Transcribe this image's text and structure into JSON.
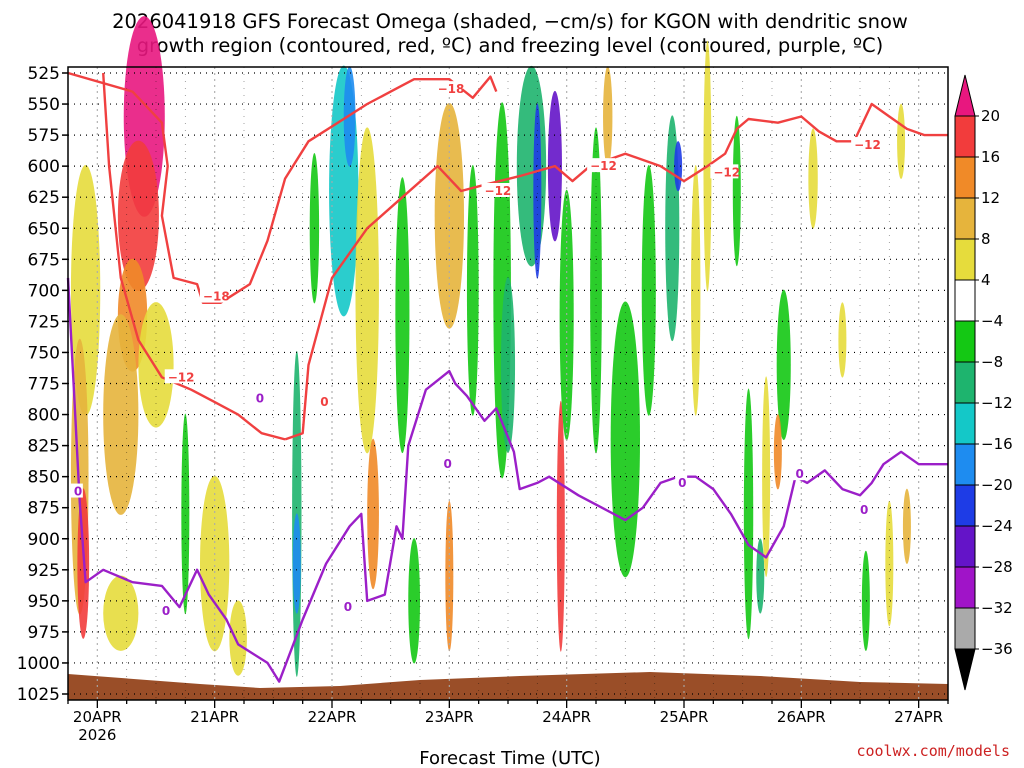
{
  "chart_data": {
    "type": "heatmap",
    "title_line1": "2026041918 GFS Forecast Omega (shaded, −cm/s) for KGON with dendritic snow",
    "title_line2": "growth region (contoured, red, ºC) and freezing level (contoured, purple, ºC)",
    "xlabel": "Forecast Time (UTC)",
    "credit": "coolwx.com/models",
    "y_ticks": [
      525,
      550,
      575,
      600,
      625,
      650,
      675,
      700,
      725,
      750,
      775,
      800,
      825,
      850,
      875,
      900,
      925,
      950,
      975,
      1000,
      1025
    ],
    "x_ticks": [
      {
        "label": "20APR",
        "sub": "2026",
        "day": 0
      },
      {
        "label": "21APR",
        "sub": "",
        "day": 1
      },
      {
        "label": "22APR",
        "sub": "",
        "day": 2
      },
      {
        "label": "23APR",
        "sub": "",
        "day": 3
      },
      {
        "label": "24APR",
        "sub": "",
        "day": 4
      },
      {
        "label": "25APR",
        "sub": "",
        "day": 5
      },
      {
        "label": "26APR",
        "sub": "",
        "day": 6
      },
      {
        "label": "27APR",
        "sub": "",
        "day": 7
      }
    ],
    "x_range_days": [
      -0.25,
      7.25
    ],
    "colorbar": {
      "labels": [
        "20",
        "16",
        "12",
        "8",
        "4",
        "−4",
        "−8",
        "−12",
        "−16",
        "−20",
        "−24",
        "−28",
        "−32",
        "−36"
      ],
      "colors": [
        "#e8177f",
        "#f23c3c",
        "#f08a28",
        "#e6b43c",
        "#e6dc3c",
        "#ffffff",
        "#14c814",
        "#1eb46e",
        "#14c8c8",
        "#1e8cf0",
        "#1e3ce6",
        "#6414c8",
        "#a014c8",
        "#aaaaaa",
        "#000000"
      ]
    },
    "series": [
      {
        "name": "dendritic snow growth region (red, ºC)",
        "color": "#f04040",
        "contour_labels": [
          {
            "text": "−18",
            "day": 2.9,
            "p": 538
          },
          {
            "text": "−18",
            "day": 0.9,
            "p": 705
          },
          {
            "text": "−12",
            "day": 0.6,
            "p": 770
          },
          {
            "text": "−12",
            "day": 3.3,
            "p": 620
          },
          {
            "text": "−12",
            "day": 4.2,
            "p": 600
          },
          {
            "text": "−12",
            "day": 5.25,
            "p": 605
          },
          {
            "text": "−12",
            "day": 6.45,
            "p": 583
          },
          {
            "text": "0",
            "day": 1.9,
            "p": 790
          }
        ],
        "paths": [
          [
            [
              -0.25,
              525
            ],
            [
              0.3,
              540
            ],
            [
              0.55,
              565
            ],
            [
              0.6,
              600
            ],
            [
              0.55,
              640
            ],
            [
              0.65,
              690
            ],
            [
              0.85,
              695
            ],
            [
              0.9,
              710
            ],
            [
              1.05,
              710
            ],
            [
              1.3,
              695
            ],
            [
              1.45,
              660
            ],
            [
              1.6,
              610
            ],
            [
              1.8,
              580
            ],
            [
              2.05,
              565
            ],
            [
              2.3,
              550
            ],
            [
              2.5,
              540
            ],
            [
              2.7,
              530
            ],
            [
              3.0,
              530
            ],
            [
              3.2,
              545
            ],
            [
              3.35,
              528
            ],
            [
              3.4,
              540
            ]
          ],
          [
            [
              0.05,
              525
            ],
            [
              0.1,
              600
            ],
            [
              0.2,
              690
            ],
            [
              0.35,
              740
            ],
            [
              0.55,
              770
            ],
            [
              0.8,
              780
            ],
            [
              1.0,
              790
            ],
            [
              1.2,
              800
            ],
            [
              1.4,
              815
            ],
            [
              1.6,
              820
            ]
          ],
          [
            [
              1.6,
              820
            ],
            [
              1.75,
              815
            ],
            [
              1.8,
              760
            ],
            [
              2.0,
              690
            ],
            [
              2.3,
              650
            ],
            [
              2.6,
              625
            ],
            [
              2.9,
              600
            ],
            [
              3.1,
              620
            ],
            [
              3.3,
              615
            ],
            [
              3.6,
              608
            ],
            [
              3.9,
              600
            ],
            [
              4.05,
              612
            ],
            [
              4.2,
              600
            ],
            [
              4.5,
              590
            ],
            [
              4.8,
              600
            ],
            [
              5.0,
              612
            ],
            [
              5.2,
              600
            ],
            [
              5.35,
              590
            ],
            [
              5.45,
              570
            ],
            [
              5.55,
              562
            ],
            [
              5.8,
              565
            ],
            [
              6.0,
              560
            ],
            [
              6.15,
              572
            ],
            [
              6.3,
              580
            ],
            [
              6.45,
              580
            ],
            [
              6.6,
              550
            ],
            [
              6.75,
              560
            ],
            [
              6.9,
              570
            ],
            [
              7.05,
              575
            ],
            [
              7.25,
              575
            ]
          ]
        ]
      },
      {
        "name": "freezing level (purple, ºC)",
        "color": "#9b1fc8",
        "contour_labels": [
          {
            "text": "0",
            "day": -0.2,
            "p": 862
          },
          {
            "text": "0",
            "day": 0.55,
            "p": 958
          },
          {
            "text": "0",
            "day": 1.35,
            "p": 787
          },
          {
            "text": "0",
            "day": 2.1,
            "p": 955
          },
          {
            "text": "0",
            "day": 2.95,
            "p": 840
          },
          {
            "text": "0",
            "day": 4.95,
            "p": 855
          },
          {
            "text": "0",
            "day": 5.95,
            "p": 848
          },
          {
            "text": "0",
            "day": 6.5,
            "p": 877
          }
        ],
        "paths": [
          [
            [
              -0.25,
              690
            ],
            [
              -0.2,
              780
            ],
            [
              -0.15,
              870
            ],
            [
              -0.1,
              935
            ],
            [
              0.05,
              925
            ],
            [
              0.3,
              935
            ],
            [
              0.55,
              938
            ],
            [
              0.7,
              955
            ],
            [
              0.85,
              925
            ],
            [
              0.95,
              945
            ],
            [
              1.1,
              965
            ],
            [
              1.2,
              985
            ],
            [
              1.45,
              1000
            ],
            [
              1.55,
              1015
            ],
            [
              1.75,
              965
            ],
            [
              1.95,
              920
            ],
            [
              2.15,
              890
            ],
            [
              2.25,
              880
            ],
            [
              2.3,
              950
            ],
            [
              2.45,
              945
            ],
            [
              2.55,
              890
            ],
            [
              2.6,
              900
            ],
            [
              2.65,
              825
            ],
            [
              2.8,
              780
            ],
            [
              3.0,
              765
            ],
            [
              3.05,
              775
            ],
            [
              3.15,
              785
            ],
            [
              3.3,
              805
            ],
            [
              3.4,
              795
            ],
            [
              3.55,
              830
            ],
            [
              3.6,
              860
            ],
            [
              3.75,
              855
            ],
            [
              3.85,
              850
            ],
            [
              4.1,
              865
            ],
            [
              4.3,
              875
            ],
            [
              4.5,
              885
            ],
            [
              4.65,
              875
            ],
            [
              4.8,
              855
            ],
            [
              4.95,
              850
            ],
            [
              5.1,
              850
            ],
            [
              5.25,
              860
            ],
            [
              5.4,
              880
            ],
            [
              5.55,
              905
            ],
            [
              5.7,
              915
            ],
            [
              5.85,
              890
            ],
            [
              5.95,
              850
            ],
            [
              6.05,
              855
            ],
            [
              6.2,
              845
            ],
            [
              6.35,
              860
            ],
            [
              6.5,
              865
            ],
            [
              6.6,
              855
            ],
            [
              6.7,
              840
            ],
            [
              6.85,
              830
            ],
            [
              7.0,
              840
            ],
            [
              7.25,
              840
            ]
          ]
        ]
      }
    ]
  }
}
